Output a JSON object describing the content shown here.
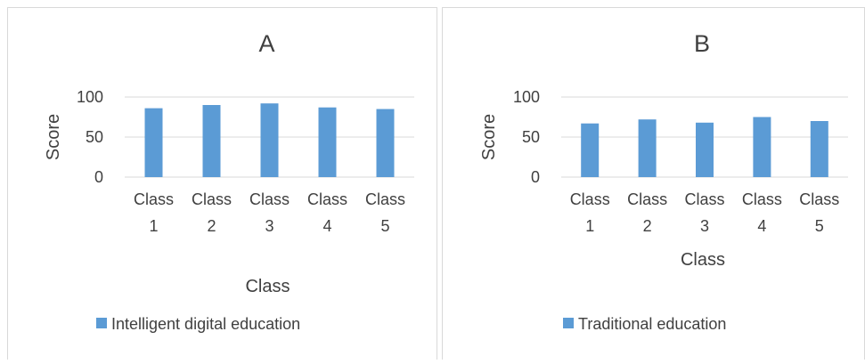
{
  "chart_data": [
    {
      "type": "bar",
      "title": "A",
      "xlabel": "Class",
      "ylabel": "Score",
      "categories": [
        "Class 1",
        "Class 2",
        "Class 3",
        "Class 4",
        "Class 5"
      ],
      "series": [
        {
          "name": "Intelligent digital education",
          "values": [
            86,
            90,
            92,
            87,
            85
          ]
        }
      ],
      "ylim": [
        0,
        100
      ],
      "yticks": [
        0,
        50,
        100
      ],
      "grid": true,
      "legend": "bottom",
      "bar_color": "#5b9bd5"
    },
    {
      "type": "bar",
      "title": "B",
      "xlabel": "Class",
      "ylabel": "Score",
      "categories": [
        "Class 1",
        "Class 2",
        "Class 3",
        "Class 4",
        "Class 5"
      ],
      "series": [
        {
          "name": "Traditional education",
          "values": [
            67,
            72,
            68,
            75,
            70
          ]
        }
      ],
      "ylim": [
        0,
        100
      ],
      "yticks": [
        0,
        50,
        100
      ],
      "grid": true,
      "legend": "bottom",
      "bar_color": "#5b9bd5"
    }
  ],
  "colors": {
    "gridline": "#d9d9d9",
    "text": "#404040",
    "panel_border": "#d9d9d9"
  }
}
